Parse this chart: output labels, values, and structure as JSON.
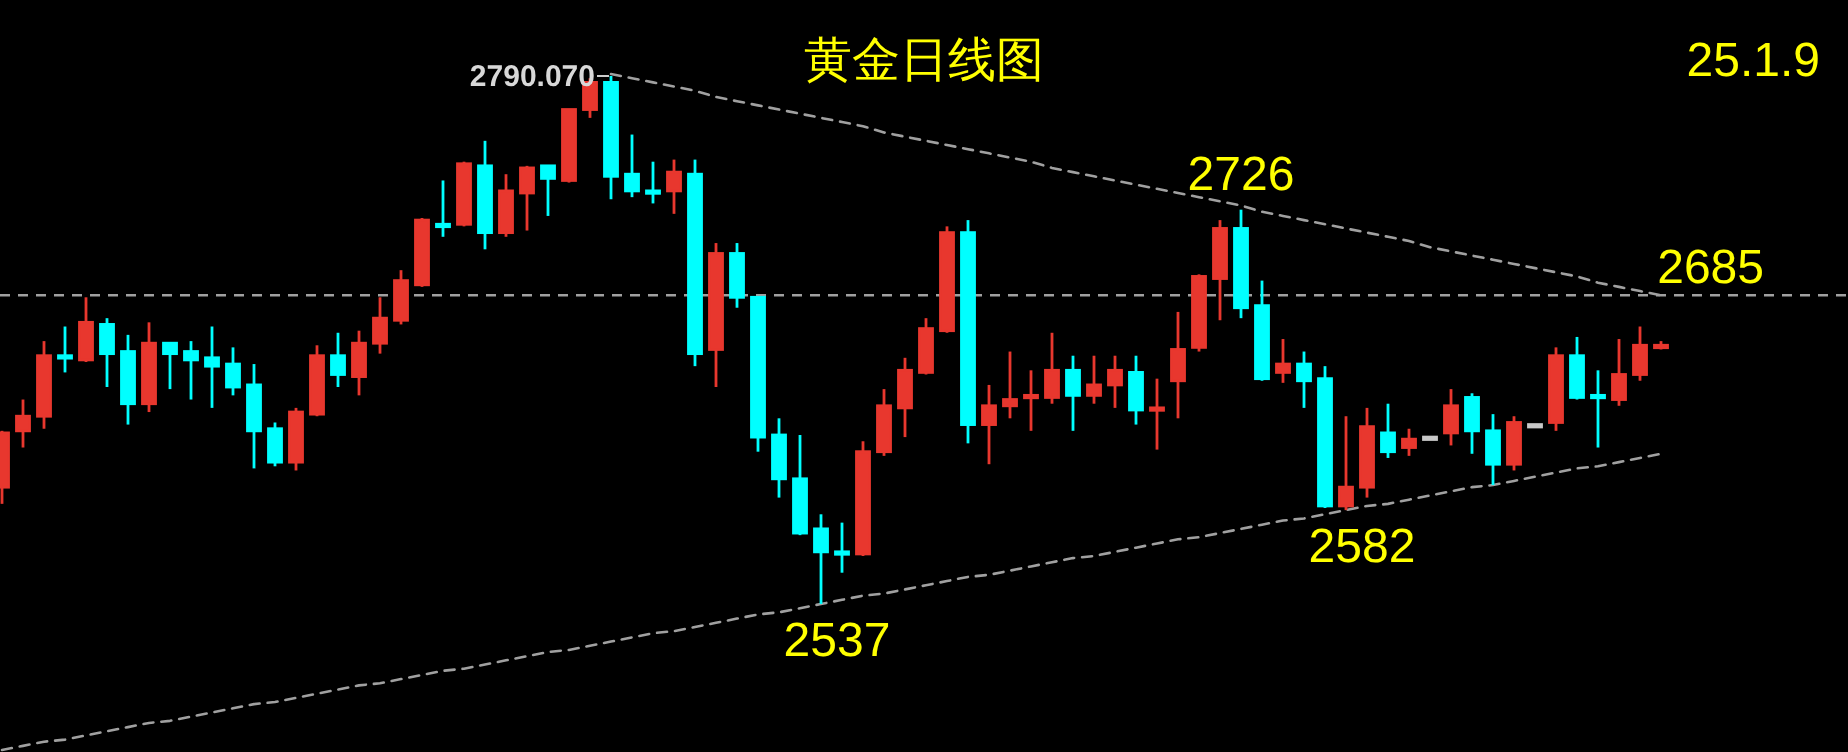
{
  "chart_data": {
    "type": "candlestick",
    "title": "黄金日线图",
    "categories": [
      null,
      null,
      null,
      null,
      null,
      null,
      null,
      null,
      null,
      null,
      null,
      null,
      null,
      null,
      null,
      null,
      null,
      null,
      null,
      null,
      null,
      null,
      null,
      null,
      null,
      null,
      null,
      null,
      null,
      null,
      null,
      null,
      null,
      null,
      null,
      null,
      null,
      null,
      null,
      null,
      null,
      null,
      null,
      null,
      null,
      null,
      null,
      null,
      null,
      null,
      null,
      null,
      null,
      null,
      null,
      null,
      null,
      null,
      null,
      null,
      null,
      null,
      null,
      null,
      null,
      null,
      null,
      null,
      null,
      null,
      null,
      null,
      null,
      null,
      null,
      null,
      null,
      null,
      null,
      null
    ],
    "ohlc": [
      [
        2593,
        2620,
        2585,
        2619
      ],
      [
        2620,
        2635,
        2612,
        2627
      ],
      [
        2627,
        2663,
        2621,
        2656
      ],
      [
        2656,
        2670,
        2648,
        2655
      ],
      [
        2654,
        2684,
        2653,
        2672
      ],
      [
        2671,
        2674,
        2641,
        2657
      ],
      [
        2658,
        2666,
        2623,
        2633
      ],
      [
        2633,
        2672,
        2629,
        2662
      ],
      [
        2662,
        2662,
        2640,
        2657
      ],
      [
        2658,
        2663,
        2635,
        2654
      ],
      [
        2655,
        2670,
        2631,
        2651
      ],
      [
        2652,
        2660,
        2637,
        2641
      ],
      [
        2642,
        2652,
        2602,
        2620
      ],
      [
        2621,
        2624,
        2603,
        2605
      ],
      [
        2605,
        2631,
        2601,
        2629
      ],
      [
        2628,
        2661,
        2627,
        2656
      ],
      [
        2656,
        2667,
        2641,
        2647
      ],
      [
        2646,
        2668,
        2637,
        2662
      ],
      [
        2662,
        2684,
        2657,
        2674
      ],
      [
        2673,
        2697,
        2671,
        2692
      ],
      [
        2690,
        2722,
        2689,
        2721
      ],
      [
        2719,
        2740,
        2713,
        2718
      ],
      [
        2719,
        2749,
        2718,
        2748
      ],
      [
        2747,
        2759,
        2707,
        2715
      ],
      [
        2715,
        2743,
        2713,
        2735
      ],
      [
        2734,
        2747,
        2716,
        2746
      ],
      [
        2747,
        2747,
        2723,
        2741
      ],
      [
        2740,
        2774,
        2739,
        2774
      ],
      [
        2774,
        2789,
        2770,
        2787
      ],
      [
        2787,
        2790.07,
        2731,
        2742
      ],
      [
        2743,
        2762,
        2732,
        2735
      ],
      [
        2735,
        2749,
        2729,
        2734
      ],
      [
        2735,
        2750,
        2724,
        2744
      ],
      [
        2743,
        2750,
        2651,
        2657
      ],
      [
        2659,
        2710,
        2641,
        2705
      ],
      [
        2705,
        2710,
        2679,
        2684
      ],
      [
        2684,
        2684,
        2610,
        2617
      ],
      [
        2618,
        2626,
        2588,
        2597
      ],
      [
        2597,
        2618,
        2570,
        2571
      ],
      [
        2573,
        2580,
        2537,
        2562
      ],
      [
        2562,
        2576,
        2552,
        2561
      ],
      [
        2561,
        2615,
        2560,
        2610
      ],
      [
        2610,
        2640,
        2608,
        2632
      ],
      [
        2631,
        2655,
        2617,
        2649
      ],
      [
        2648,
        2674,
        2647,
        2669
      ],
      [
        2668,
        2718,
        2667,
        2715
      ],
      [
        2715,
        2721,
        2614,
        2623
      ],
      [
        2623,
        2642,
        2604,
        2632
      ],
      [
        2632,
        2658,
        2626,
        2635
      ],
      [
        2637,
        2649,
        2620,
        2637
      ],
      [
        2636,
        2667,
        2633,
        2649
      ],
      [
        2649,
        2656,
        2620,
        2637
      ],
      [
        2637,
        2656,
        2633,
        2642
      ],
      [
        2642,
        2656,
        2631,
        2649
      ],
      [
        2648,
        2656,
        2623,
        2630
      ],
      [
        2631,
        2645,
        2611,
        2631
      ],
      [
        2644,
        2677,
        2626,
        2659
      ],
      [
        2660,
        2695,
        2658,
        2694
      ],
      [
        2693,
        2721,
        2673,
        2717
      ],
      [
        2717,
        2726,
        2674,
        2679
      ],
      [
        2680,
        2692,
        2644,
        2645
      ],
      [
        2648,
        2664,
        2643,
        2652
      ],
      [
        2652,
        2658,
        2631,
        2644
      ],
      [
        2645,
        2651,
        2583,
        2584
      ],
      [
        2584,
        2627,
        2582,
        2593
      ],
      [
        2593,
        2631,
        2588,
        2622
      ],
      [
        2619,
        2633,
        2607,
        2610
      ],
      [
        2612,
        2621,
        2608,
        2616
      ],
      [
        2617,
        2617,
        2617,
        2617
      ],
      [
        2619,
        2640,
        2613,
        2632
      ],
      [
        2636,
        2638,
        2609,
        2620
      ],
      [
        2620,
        2628,
        2594,
        2604
      ],
      [
        2604,
        2627,
        2601,
        2624
      ],
      [
        2623,
        2623,
        2623,
        2623
      ],
      [
        2624,
        2660,
        2620,
        2656
      ],
      [
        2656,
        2665,
        2635,
        2636
      ],
      [
        2637,
        2649,
        2612,
        2636
      ],
      [
        2635,
        2664,
        2632,
        2647
      ],
      [
        2647,
        2670,
        2644,
        2661
      ],
      [
        2661,
        2663,
        2659,
        2661
      ]
    ],
    "colors": [
      "#e8372e",
      "#e8372e",
      "#e8372e",
      "#00ffff",
      "#e8372e",
      "#00ffff",
      "#00ffff",
      "#e8372e",
      "#00ffff",
      "#00ffff",
      "#00ffff",
      "#00ffff",
      "#00ffff",
      "#00ffff",
      "#e8372e",
      "#e8372e",
      "#00ffff",
      "#e8372e",
      "#e8372e",
      "#e8372e",
      "#e8372e",
      "#00ffff",
      "#e8372e",
      "#00ffff",
      "#e8372e",
      "#e8372e",
      "#00ffff",
      "#e8372e",
      "#e8372e",
      "#00ffff",
      "#00ffff",
      "#00ffff",
      "#e8372e",
      "#00ffff",
      "#e8372e",
      "#00ffff",
      "#00ffff",
      "#00ffff",
      "#00ffff",
      "#00ffff",
      "#00ffff",
      "#e8372e",
      "#e8372e",
      "#e8372e",
      "#e8372e",
      "#e8372e",
      "#00ffff",
      "#e8372e",
      "#e8372e",
      "#e8372e",
      "#e8372e",
      "#00ffff",
      "#e8372e",
      "#e8372e",
      "#00ffff",
      "#e8372e",
      "#e8372e",
      "#e8372e",
      "#e8372e",
      "#00ffff",
      "#00ffff",
      "#e8372e",
      "#00ffff",
      "#00ffff",
      "#e8372e",
      "#e8372e",
      "#00ffff",
      "#e8372e",
      "#c8c8c8",
      "#e8372e",
      "#00ffff",
      "#00ffff",
      "#e8372e",
      "#c8c8c8",
      "#e8372e",
      "#00ffff",
      "#00ffff",
      "#e8372e",
      "#e8372e",
      "#e8372e"
    ],
    "series": [
      {
        "type": "line",
        "values": [
          null,
          null,
          null,
          null,
          null,
          null,
          null,
          null,
          null,
          null,
          null,
          null,
          null,
          null,
          null,
          null,
          null,
          null,
          null,
          null,
          null,
          null,
          null,
          null,
          null,
          null,
          null,
          null,
          null,
          2791,
          2789,
          2787,
          2785,
          2783,
          2780,
          2778,
          2776,
          2774,
          2772,
          2770,
          2768,
          2766,
          2763,
          2761,
          2759,
          2757,
          2755,
          2753,
          2751,
          2749,
          2746,
          2744,
          2742,
          2740,
          2738,
          2736,
          2734,
          2732,
          2730,
          2728,
          2725,
          2723,
          2721,
          2719,
          2717,
          2715,
          2713,
          2711,
          2708,
          2706,
          2704,
          2702,
          2700,
          2698,
          2696,
          2694,
          2691,
          2689,
          2687,
          2685
        ],
        "color": "#a0a0a0",
        "line_style": "dashed"
      },
      {
        "type": "line",
        "values": [
          2467,
          2469,
          2471,
          2472,
          2474,
          2476,
          2478,
          2480,
          2481,
          2483,
          2485,
          2487,
          2489,
          2490,
          2492,
          2494,
          2496,
          2498,
          2499,
          2501,
          2503,
          2505,
          2506,
          2508,
          2510,
          2512,
          2514,
          2515,
          2517,
          2519,
          2521,
          2523,
          2524,
          2526,
          2528,
          2530,
          2532,
          2533,
          2535,
          2537,
          2539,
          2541,
          2542,
          2544,
          2546,
          2548,
          2550,
          2551,
          2553,
          2555,
          2557,
          2559,
          2560,
          2562,
          2564,
          2566,
          2568,
          2569,
          2571,
          2573,
          2575,
          2577,
          2578,
          2580,
          2582,
          2584,
          2585,
          2587,
          2589,
          2591,
          2593,
          2594,
          2596,
          2598,
          2600,
          2602,
          2603,
          2605,
          2607,
          2609
        ],
        "color": "#a0a0a0",
        "line_style": "dashed"
      }
    ],
    "ref_lines": [
      {
        "axis": "y",
        "value": 2685,
        "label": "2685",
        "color": "#a0a0a0",
        "line_style": "dashed"
      }
    ],
    "annotations": [
      "2790.070",
      {
        "text": "2726",
        "y": 2726
      },
      {
        "text": "2582",
        "y": 2582
      },
      {
        "text": "2537",
        "y": 2537
      },
      "25.1.9"
    ],
    "tick_labels": false
  }
}
